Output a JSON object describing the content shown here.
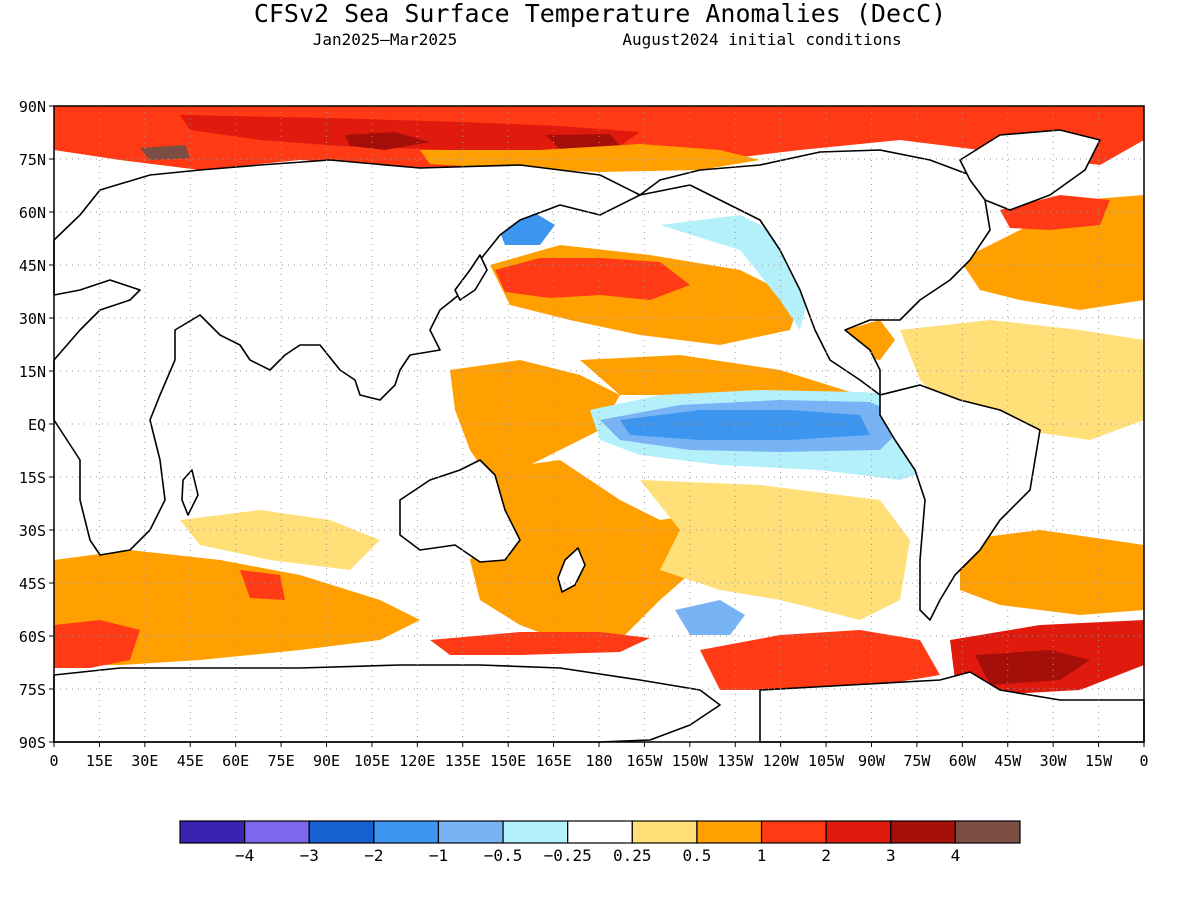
{
  "title": "CFSv2 Sea Surface Temperature Anomalies (DecC)",
  "subtitle_left": "Jan2025–Mar2025",
  "subtitle_right": "August2024 initial conditions",
  "map": {
    "projection": "equirectangular",
    "lon_range": [
      0,
      360
    ],
    "lat_range": [
      -90,
      90
    ],
    "grid": "dotted",
    "lat_labels": [
      "90N",
      "75N",
      "60N",
      "45N",
      "30N",
      "15N",
      "EQ",
      "15S",
      "30S",
      "45S",
      "60S",
      "75S",
      "90S"
    ],
    "lon_labels": [
      "0",
      "15E",
      "30E",
      "45E",
      "60E",
      "75E",
      "90E",
      "105E",
      "120E",
      "135E",
      "150E",
      "165E",
      "180",
      "165W",
      "150W",
      "135W",
      "120W",
      "105W",
      "90W",
      "75W",
      "60W",
      "45W",
      "30W",
      "15W",
      "0"
    ],
    "land_color": "#ffffff",
    "coastline_color": "#000000"
  },
  "colorbar": {
    "bins": [
      {
        "color": "#3a22b3",
        "label": "−4"
      },
      {
        "color": "#7b68ee",
        "label": "−3"
      },
      {
        "color": "#1660cf",
        "label": "−2"
      },
      {
        "color": "#3c96f0",
        "label": "−1"
      },
      {
        "color": "#78b4f5",
        "label": "−0.5"
      },
      {
        "color": "#b4f0fa",
        "label": "−0.25"
      },
      {
        "color": "#ffffff",
        "label": "0.25"
      },
      {
        "color": "#ffe078",
        "label": "0.5"
      },
      {
        "color": "#ffa000",
        "label": "1"
      },
      {
        "color": "#ff3a14",
        "label": "2"
      },
      {
        "color": "#e11a0e",
        "label": "3"
      },
      {
        "color": "#a50f0a",
        "label": "4"
      },
      {
        "color": "#7a4e42",
        "label": ""
      }
    ]
  }
}
